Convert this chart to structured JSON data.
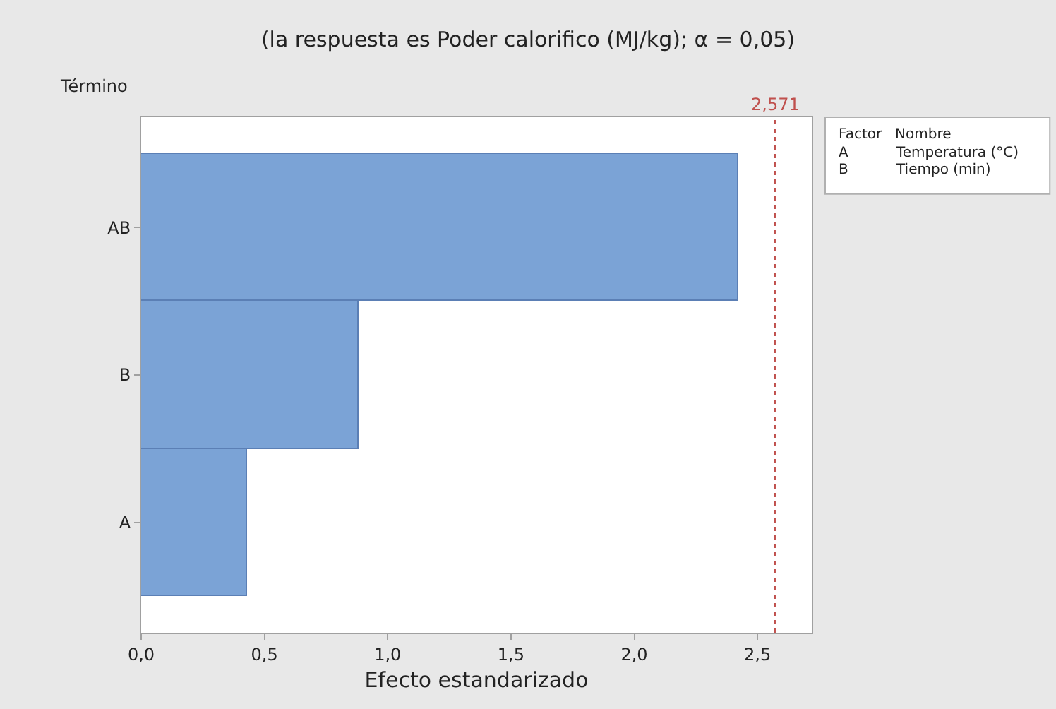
{
  "chart_data": {
    "type": "bar",
    "orientation": "horizontal",
    "title": "(la respuesta es Poder calorifico (MJ/kg); α = 0,05)",
    "xlabel": "Efecto estandarizado",
    "ylabel": "Término",
    "categories": [
      "AB",
      "B",
      "A"
    ],
    "values": [
      2.42,
      0.88,
      0.43
    ],
    "color": "#7ba3d6",
    "xlim": [
      0,
      2.72
    ],
    "xticks": [
      {
        "value": 0,
        "label": "0,0"
      },
      {
        "value": 0.5,
        "label": "0,5"
      },
      {
        "value": 1,
        "label": "1,0"
      },
      {
        "value": 1.5,
        "label": "1,5"
      },
      {
        "value": 2,
        "label": "2,0"
      },
      {
        "value": 2.5,
        "label": "2,5"
      }
    ],
    "ref_lines": [
      {
        "axis": "x",
        "value": 2.571,
        "label": "2,571",
        "color": "#c0504d",
        "line_style": "dotted"
      }
    ],
    "annotations": [
      "Factor",
      "Nombre",
      "A",
      "Temperatura (°C)",
      "B",
      "Tiempo (min)"
    ],
    "tick_labels": [
      "x",
      "y"
    ]
  }
}
